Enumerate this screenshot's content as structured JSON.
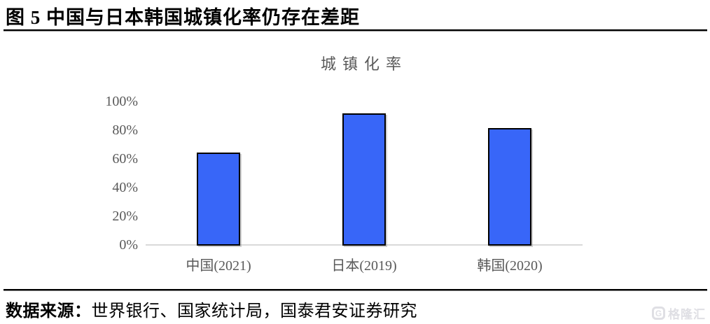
{
  "figure": {
    "title": "图 5 中国与日本韩国城镇化率仍存在差距"
  },
  "chart_data": {
    "type": "bar",
    "title": "城镇化率",
    "categories": [
      "中国(2021)",
      "日本(2019)",
      "韩国(2020)"
    ],
    "values": [
      65,
      92,
      82
    ],
    "value_unit": "%",
    "ylim": [
      0,
      100
    ],
    "yticks": [
      0,
      20,
      40,
      60,
      80,
      100
    ],
    "ytick_labels": [
      "0%",
      "20%",
      "40%",
      "60%",
      "80%",
      "100%"
    ],
    "xlabel": "",
    "ylabel": "",
    "grid": false,
    "legend": "none",
    "colors": {
      "bar_fill": "#3866F8",
      "bar_border": "#000000",
      "axis_line": "#D9D9D9",
      "tick_text": "#595959",
      "chart_title_text": "#595959"
    }
  },
  "footer": {
    "source_label": "数据来源：",
    "source_text": "世界银行、国家统计局，国泰君安证券研究",
    "watermark_text": "格隆汇",
    "watermark_icon_letter": "G"
  }
}
